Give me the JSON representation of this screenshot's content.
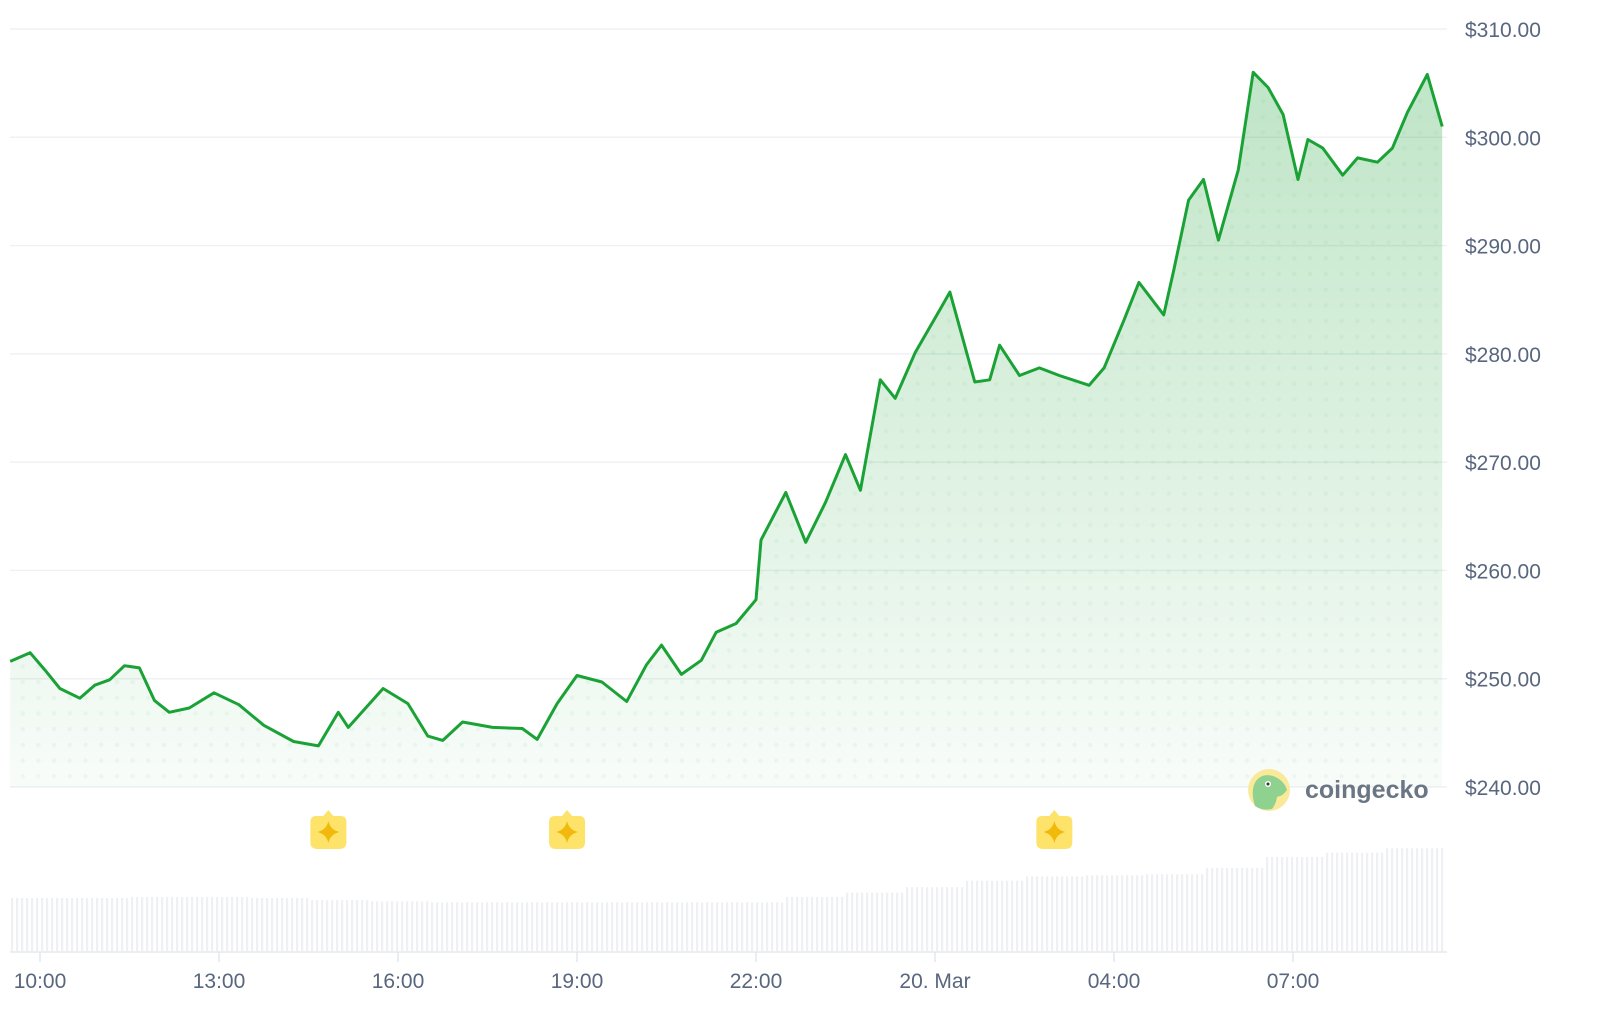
{
  "chart_data": {
    "type": "area",
    "title": "",
    "xlabel": "",
    "ylabel": "",
    "ylim": [
      240,
      310
    ],
    "y_ticks": [
      "$240.00",
      "$250.00",
      "$260.00",
      "$270.00",
      "$280.00",
      "$290.00",
      "$300.00",
      "$310.00"
    ],
    "y_tick_values": [
      240,
      250,
      260,
      270,
      280,
      290,
      300,
      310
    ],
    "x_ticks": [
      {
        "label": "10:00",
        "t": "19 10:00"
      },
      {
        "label": "13:00",
        "t": "19 13:00"
      },
      {
        "label": "16:00",
        "t": "19 16:00"
      },
      {
        "label": "19:00",
        "t": "19 19:00"
      },
      {
        "label": "22:00",
        "t": "19 22:00"
      },
      {
        "label": "20. Mar",
        "t": "20 01:00"
      },
      {
        "label": "04:00",
        "t": "20 04:00"
      },
      {
        "label": "07:00",
        "t": "20 07:00"
      }
    ],
    "y_axis_position": "right",
    "grid": true,
    "line_color": "#1ba236",
    "fill_color": "#1ba236",
    "series": [
      {
        "t": [
          "19 09:30",
          "19 09:50",
          "19 10:05",
          "19 10:20",
          "19 10:40",
          "19 10:55",
          "19 11:10",
          "19 11:25",
          "19 11:40",
          "19 11:55",
          "19 12:10",
          "19 12:30",
          "19 12:55",
          "19 13:20",
          "19 13:45",
          "19 14:15",
          "19 14:40",
          "19 15:00",
          "19 15:10",
          "19 15:45",
          "19 16:10",
          "19 16:30",
          "19 16:45",
          "19 17:05",
          "19 17:35",
          "19 18:05",
          "19 18:20",
          "19 18:40",
          "19 19:00",
          "19 19:25",
          "19 19:50",
          "19 20:10",
          "19 20:25",
          "19 20:45",
          "19 21:05",
          "19 21:20",
          "19 21:40",
          "19 22:00",
          "19 22:05",
          "19 22:30",
          "19 22:50",
          "19 23:10",
          "19 23:30",
          "19 23:45",
          "20 00:05",
          "20 00:20",
          "20 00:40",
          "20 01:05",
          "20 01:15",
          "20 01:40",
          "20 01:55",
          "20 02:05",
          "20 02:25",
          "20 02:45",
          "20 03:05",
          "20 03:35",
          "20 03:50",
          "20 04:10",
          "20 04:25",
          "20 04:50",
          "20 05:00",
          "20 05:15",
          "20 05:30",
          "20 05:45",
          "20 06:05",
          "20 06:20",
          "20 06:35",
          "20 06:50",
          "20 07:05",
          "20 07:15",
          "20 07:30",
          "20 07:50",
          "20 08:05",
          "20 08:25",
          "20 08:40",
          "20 08:55",
          "20 09:15",
          "20 09:30"
        ],
        "values": [
          251.6,
          252.4,
          250.8,
          249.1,
          248.2,
          249.4,
          249.9,
          251.2,
          251.0,
          248.0,
          246.9,
          247.3,
          248.7,
          247.6,
          245.7,
          244.2,
          243.8,
          246.9,
          245.5,
          249.1,
          247.7,
          244.7,
          244.3,
          246.0,
          245.5,
          245.4,
          244.4,
          247.7,
          250.3,
          249.7,
          247.9,
          251.3,
          253.1,
          250.4,
          251.7,
          254.3,
          255.1,
          257.3,
          262.8,
          267.2,
          262.6,
          266.3,
          270.7,
          267.4,
          277.6,
          275.9,
          280.1,
          284.1,
          285.7,
          277.4,
          277.6,
          280.8,
          278.0,
          278.7,
          278.0,
          277.1,
          278.7,
          283.1,
          286.6,
          283.6,
          287.7,
          294.2,
          296.1,
          290.5,
          297.0,
          306.0,
          304.6,
          302.1,
          296.1,
          299.8,
          299.0,
          296.5,
          298.1,
          297.7,
          299.0,
          302.3,
          305.8,
          301.0
        ]
      }
    ],
    "volume_relative": {
      "t": [
        "19 09:30",
        "19 10:30",
        "19 11:30",
        "19 12:30",
        "19 13:30",
        "19 14:30",
        "19 15:30",
        "19 16:30",
        "19 17:30",
        "19 18:30",
        "19 19:30",
        "19 20:30",
        "19 21:30",
        "19 22:30",
        "19 23:30",
        "20 00:30",
        "20 01:30",
        "20 02:30",
        "20 03:30",
        "20 04:30",
        "20 05:30",
        "20 06:30",
        "20 07:30",
        "20 08:30"
      ],
      "values": [
        0.5,
        0.5,
        0.51,
        0.51,
        0.5,
        0.48,
        0.47,
        0.46,
        0.46,
        0.46,
        0.46,
        0.46,
        0.46,
        0.51,
        0.55,
        0.6,
        0.66,
        0.7,
        0.71,
        0.72,
        0.78,
        0.88,
        0.92,
        0.96
      ]
    },
    "events": [
      {
        "t": "19 14:50",
        "icon": "sparkle-icon"
      },
      {
        "t": "19 18:50",
        "icon": "sparkle-icon"
      },
      {
        "t": "20 03:00",
        "icon": "sparkle-icon"
      }
    ],
    "event_color": "#fde36a",
    "event_icon_color": "#f0b90b"
  },
  "watermark": {
    "text": "coingecko"
  }
}
